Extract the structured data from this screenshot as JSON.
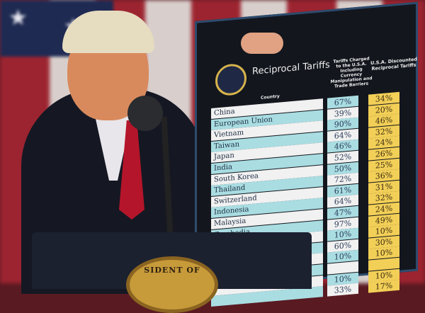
{
  "board": {
    "title": "Reciprocal Tariffs",
    "col_country": "Country",
    "col_charged": "Tariffs Charged to the U.S.A. Including Currency Manipulation and Trade Barriers",
    "col_discounted": "U.S.A. Discounted Reciprocal Tariffs",
    "rows": [
      {
        "country": "China",
        "charged": "67%",
        "discounted": "34%"
      },
      {
        "country": "European Union",
        "charged": "39%",
        "discounted": "20%"
      },
      {
        "country": "Vietnam",
        "charged": "90%",
        "discounted": "46%"
      },
      {
        "country": "Taiwan",
        "charged": "64%",
        "discounted": "32%"
      },
      {
        "country": "Japan",
        "charged": "46%",
        "discounted": "24%"
      },
      {
        "country": "India",
        "charged": "52%",
        "discounted": "26%"
      },
      {
        "country": "South Korea",
        "charged": "50%",
        "discounted": "25%"
      },
      {
        "country": "Thailand",
        "charged": "72%",
        "discounted": "36%"
      },
      {
        "country": "Switzerland",
        "charged": "61%",
        "discounted": "31%"
      },
      {
        "country": "Indonesia",
        "charged": "64%",
        "discounted": "32%"
      },
      {
        "country": "Malaysia",
        "charged": "47%",
        "discounted": "24%"
      },
      {
        "country": "Cambodia",
        "charged": "97%",
        "discounted": "49%"
      },
      {
        "country": "",
        "charged": "10%",
        "discounted": "10%"
      },
      {
        "country": "",
        "charged": "60%",
        "discounted": "30%"
      },
      {
        "country": "",
        "charged": "10%",
        "discounted": "10%"
      },
      {
        "country": "",
        "charged": "",
        "discounted": ""
      },
      {
        "country": "",
        "charged": "10%",
        "discounted": "10%"
      },
      {
        "country": "",
        "charged": "33%",
        "discounted": "17%"
      }
    ]
  },
  "podium_seal_text": "SIDENT OF",
  "colors": {
    "teal": "#a9dde2",
    "gold": "#f2cf57",
    "board": "#13161d",
    "tie": "#b5152a"
  }
}
